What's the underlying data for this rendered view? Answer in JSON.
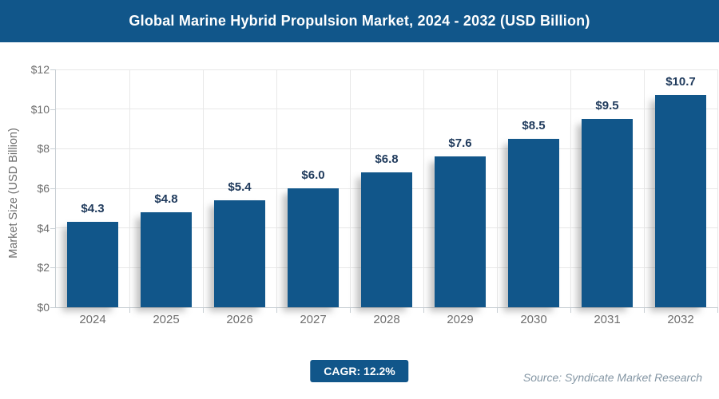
{
  "header": {
    "title": "Global Marine Hybrid Propulsion Market, 2024 - 2032 (USD Billion)"
  },
  "chart_data": {
    "type": "bar",
    "title": "Global Marine Hybrid Propulsion Market, 2024 - 2032 (USD Billion)",
    "categories": [
      "2024",
      "2025",
      "2026",
      "2027",
      "2028",
      "2029",
      "2030",
      "2031",
      "2032"
    ],
    "values": [
      4.3,
      4.8,
      5.4,
      6.0,
      6.8,
      7.6,
      8.5,
      9.5,
      10.7
    ],
    "value_labels": [
      "$4.3",
      "$4.8",
      "$5.4",
      "$6.0",
      "$6.8",
      "$7.6",
      "$8.5",
      "$9.5",
      "$10.7"
    ],
    "xlabel": "",
    "ylabel": "Market Size (USD Billion)",
    "ylim": [
      0,
      12
    ],
    "ytick_step": 2,
    "ytick_labels": [
      "$0",
      "$2",
      "$4",
      "$6",
      "$8",
      "$10",
      "$12"
    ],
    "grid": true,
    "legend": "none",
    "bar_color": "#11568a",
    "value_label_color": "#1f3a5c"
  },
  "footer": {
    "cagr_badge": "CAGR: 12.2%",
    "source_note": "Source: Syndicate Market Research"
  },
  "colors": {
    "header_bg": "#11568a",
    "badge_bg": "#11568a",
    "axis_text": "#6e6e6e",
    "grid": "#e8e8e8",
    "source_text": "#8496a4"
  }
}
